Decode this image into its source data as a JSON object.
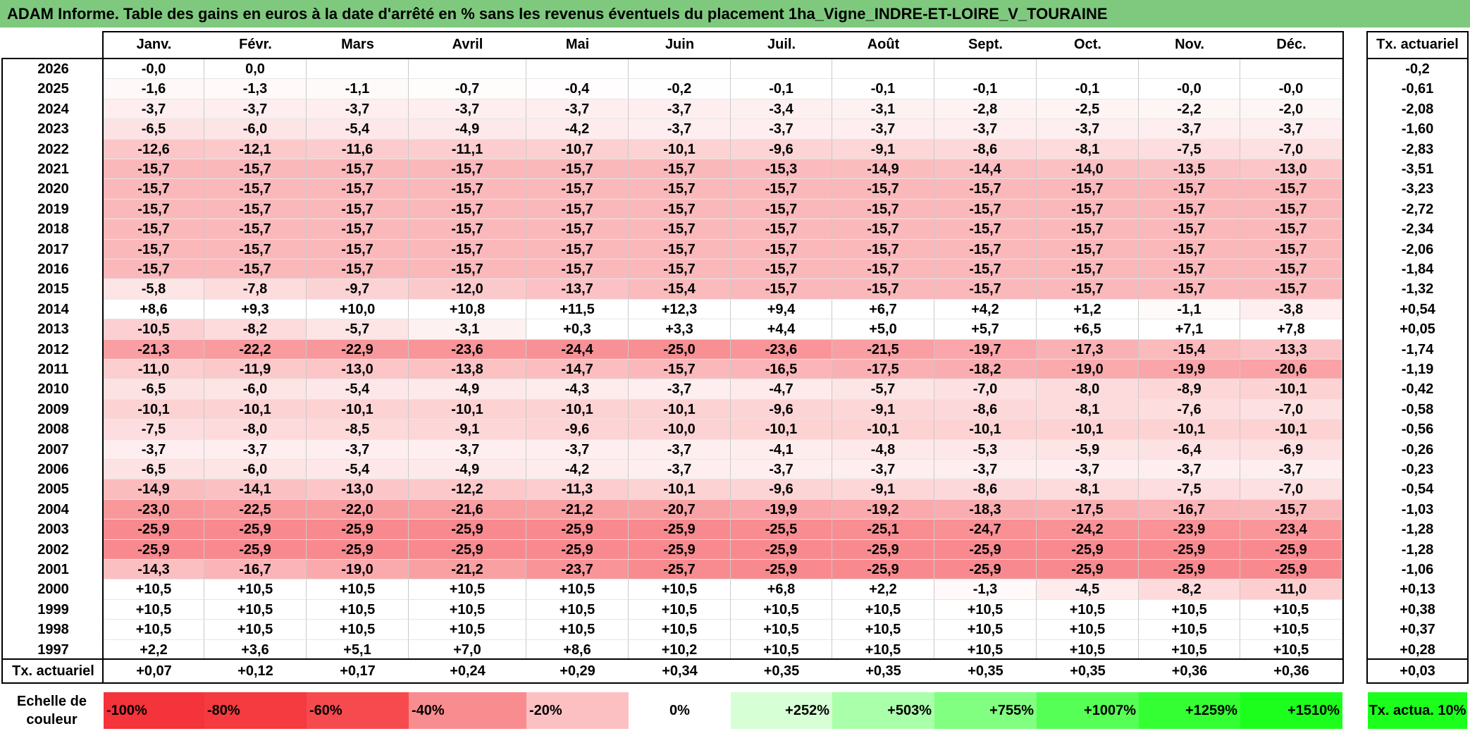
{
  "title": "ADAM Informe. Table des gains en euros à la date d'arrêté en % sans les revenus éventuels du placement 1ha_Vigne_INDRE-ET-LOIRE_V_TOURAINE",
  "chart_data": {
    "type": "table",
    "months": [
      "Janv.",
      "Févr.",
      "Mars",
      "Avril",
      "Mai",
      "Juin",
      "Juil.",
      "Août",
      "Sept.",
      "Oct.",
      "Nov.",
      "Déc."
    ],
    "annual_header": "Tx. actuariel",
    "rows": [
      {
        "year": "2026",
        "values": [
          "-0,0",
          "0,0",
          "",
          "",
          "",
          "",
          "",
          "",
          "",
          "",
          "",
          ""
        ],
        "annual": "-0,2"
      },
      {
        "year": "2025",
        "values": [
          "-1,6",
          "-1,3",
          "-1,1",
          "-0,7",
          "-0,4",
          "-0,2",
          "-0,1",
          "-0,1",
          "-0,1",
          "-0,1",
          "-0,0",
          "-0,0"
        ],
        "annual": "-0,61"
      },
      {
        "year": "2024",
        "values": [
          "-3,7",
          "-3,7",
          "-3,7",
          "-3,7",
          "-3,7",
          "-3,7",
          "-3,4",
          "-3,1",
          "-2,8",
          "-2,5",
          "-2,2",
          "-2,0"
        ],
        "annual": "-2,08"
      },
      {
        "year": "2023",
        "values": [
          "-6,5",
          "-6,0",
          "-5,4",
          "-4,9",
          "-4,2",
          "-3,7",
          "-3,7",
          "-3,7",
          "-3,7",
          "-3,7",
          "-3,7",
          "-3,7"
        ],
        "annual": "-1,60"
      },
      {
        "year": "2022",
        "values": [
          "-12,6",
          "-12,1",
          "-11,6",
          "-11,1",
          "-10,7",
          "-10,1",
          "-9,6",
          "-9,1",
          "-8,6",
          "-8,1",
          "-7,5",
          "-7,0"
        ],
        "annual": "-2,83"
      },
      {
        "year": "2021",
        "values": [
          "-15,7",
          "-15,7",
          "-15,7",
          "-15,7",
          "-15,7",
          "-15,7",
          "-15,3",
          "-14,9",
          "-14,4",
          "-14,0",
          "-13,5",
          "-13,0"
        ],
        "annual": "-3,51"
      },
      {
        "year": "2020",
        "values": [
          "-15,7",
          "-15,7",
          "-15,7",
          "-15,7",
          "-15,7",
          "-15,7",
          "-15,7",
          "-15,7",
          "-15,7",
          "-15,7",
          "-15,7",
          "-15,7"
        ],
        "annual": "-3,23"
      },
      {
        "year": "2019",
        "values": [
          "-15,7",
          "-15,7",
          "-15,7",
          "-15,7",
          "-15,7",
          "-15,7",
          "-15,7",
          "-15,7",
          "-15,7",
          "-15,7",
          "-15,7",
          "-15,7"
        ],
        "annual": "-2,72"
      },
      {
        "year": "2018",
        "values": [
          "-15,7",
          "-15,7",
          "-15,7",
          "-15,7",
          "-15,7",
          "-15,7",
          "-15,7",
          "-15,7",
          "-15,7",
          "-15,7",
          "-15,7",
          "-15,7"
        ],
        "annual": "-2,34"
      },
      {
        "year": "2017",
        "values": [
          "-15,7",
          "-15,7",
          "-15,7",
          "-15,7",
          "-15,7",
          "-15,7",
          "-15,7",
          "-15,7",
          "-15,7",
          "-15,7",
          "-15,7",
          "-15,7"
        ],
        "annual": "-2,06"
      },
      {
        "year": "2016",
        "values": [
          "-15,7",
          "-15,7",
          "-15,7",
          "-15,7",
          "-15,7",
          "-15,7",
          "-15,7",
          "-15,7",
          "-15,7",
          "-15,7",
          "-15,7",
          "-15,7"
        ],
        "annual": "-1,84"
      },
      {
        "year": "2015",
        "values": [
          "-5,8",
          "-7,8",
          "-9,7",
          "-12,0",
          "-13,7",
          "-15,4",
          "-15,7",
          "-15,7",
          "-15,7",
          "-15,7",
          "-15,7",
          "-15,7"
        ],
        "annual": "-1,32"
      },
      {
        "year": "2014",
        "values": [
          "+8,6",
          "+9,3",
          "+10,0",
          "+10,8",
          "+11,5",
          "+12,3",
          "+9,4",
          "+6,7",
          "+4,2",
          "+1,2",
          "-1,1",
          "-3,8"
        ],
        "annual": "+0,54"
      },
      {
        "year": "2013",
        "values": [
          "-10,5",
          "-8,2",
          "-5,7",
          "-3,1",
          "+0,3",
          "+3,3",
          "+4,4",
          "+5,0",
          "+5,7",
          "+6,5",
          "+7,1",
          "+7,8"
        ],
        "annual": "+0,05"
      },
      {
        "year": "2012",
        "values": [
          "-21,3",
          "-22,2",
          "-22,9",
          "-23,6",
          "-24,4",
          "-25,0",
          "-23,6",
          "-21,5",
          "-19,7",
          "-17,3",
          "-15,4",
          "-13,3"
        ],
        "annual": "-1,74"
      },
      {
        "year": "2011",
        "values": [
          "-11,0",
          "-11,9",
          "-13,0",
          "-13,8",
          "-14,7",
          "-15,7",
          "-16,5",
          "-17,5",
          "-18,2",
          "-19,0",
          "-19,9",
          "-20,6"
        ],
        "annual": "-1,19"
      },
      {
        "year": "2010",
        "values": [
          "-6,5",
          "-6,0",
          "-5,4",
          "-4,9",
          "-4,3",
          "-3,7",
          "-4,7",
          "-5,7",
          "-7,0",
          "-8,0",
          "-8,9",
          "-10,1"
        ],
        "annual": "-0,42"
      },
      {
        "year": "2009",
        "values": [
          "-10,1",
          "-10,1",
          "-10,1",
          "-10,1",
          "-10,1",
          "-10,1",
          "-9,6",
          "-9,1",
          "-8,6",
          "-8,1",
          "-7,6",
          "-7,0"
        ],
        "annual": "-0,58"
      },
      {
        "year": "2008",
        "values": [
          "-7,5",
          "-8,0",
          "-8,5",
          "-9,1",
          "-9,6",
          "-10,0",
          "-10,1",
          "-10,1",
          "-10,1",
          "-10,1",
          "-10,1",
          "-10,1"
        ],
        "annual": "-0,56"
      },
      {
        "year": "2007",
        "values": [
          "-3,7",
          "-3,7",
          "-3,7",
          "-3,7",
          "-3,7",
          "-3,7",
          "-4,1",
          "-4,8",
          "-5,3",
          "-5,9",
          "-6,4",
          "-6,9"
        ],
        "annual": "-0,26"
      },
      {
        "year": "2006",
        "values": [
          "-6,5",
          "-6,0",
          "-5,4",
          "-4,9",
          "-4,2",
          "-3,7",
          "-3,7",
          "-3,7",
          "-3,7",
          "-3,7",
          "-3,7",
          "-3,7"
        ],
        "annual": "-0,23"
      },
      {
        "year": "2005",
        "values": [
          "-14,9",
          "-14,1",
          "-13,0",
          "-12,2",
          "-11,3",
          "-10,1",
          "-9,6",
          "-9,1",
          "-8,6",
          "-8,1",
          "-7,5",
          "-7,0"
        ],
        "annual": "-0,54"
      },
      {
        "year": "2004",
        "values": [
          "-23,0",
          "-22,5",
          "-22,0",
          "-21,6",
          "-21,2",
          "-20,7",
          "-19,9",
          "-19,2",
          "-18,3",
          "-17,5",
          "-16,7",
          "-15,7"
        ],
        "annual": "-1,03"
      },
      {
        "year": "2003",
        "values": [
          "-25,9",
          "-25,9",
          "-25,9",
          "-25,9",
          "-25,9",
          "-25,9",
          "-25,5",
          "-25,1",
          "-24,7",
          "-24,2",
          "-23,9",
          "-23,4"
        ],
        "annual": "-1,28"
      },
      {
        "year": "2002",
        "values": [
          "-25,9",
          "-25,9",
          "-25,9",
          "-25,9",
          "-25,9",
          "-25,9",
          "-25,9",
          "-25,9",
          "-25,9",
          "-25,9",
          "-25,9",
          "-25,9"
        ],
        "annual": "-1,28"
      },
      {
        "year": "2001",
        "values": [
          "-14,3",
          "-16,7",
          "-19,0",
          "-21,2",
          "-23,7",
          "-25,7",
          "-25,9",
          "-25,9",
          "-25,9",
          "-25,9",
          "-25,9",
          "-25,9"
        ],
        "annual": "-1,06"
      },
      {
        "year": "2000",
        "values": [
          "+10,5",
          "+10,5",
          "+10,5",
          "+10,5",
          "+10,5",
          "+10,5",
          "+6,8",
          "+2,2",
          "-1,3",
          "-4,5",
          "-8,2",
          "-11,0"
        ],
        "annual": "+0,13"
      },
      {
        "year": "1999",
        "values": [
          "+10,5",
          "+10,5",
          "+10,5",
          "+10,5",
          "+10,5",
          "+10,5",
          "+10,5",
          "+10,5",
          "+10,5",
          "+10,5",
          "+10,5",
          "+10,5"
        ],
        "annual": "+0,38"
      },
      {
        "year": "1998",
        "values": [
          "+10,5",
          "+10,5",
          "+10,5",
          "+10,5",
          "+10,5",
          "+10,5",
          "+10,5",
          "+10,5",
          "+10,5",
          "+10,5",
          "+10,5",
          "+10,5"
        ],
        "annual": "+0,37"
      },
      {
        "year": "1997",
        "values": [
          "+2,2",
          "+3,6",
          "+5,1",
          "+7,0",
          "+8,6",
          "+10,2",
          "+10,5",
          "+10,5",
          "+10,5",
          "+10,5",
          "+10,5",
          "+10,5"
        ],
        "annual": "+0,28"
      }
    ],
    "summary_row": {
      "label": "Tx. actuariel",
      "values": [
        "+0,07",
        "+0,12",
        "+0,17",
        "+0,24",
        "+0,29",
        "+0,34",
        "+0,35",
        "+0,35",
        "+0,35",
        "+0,35",
        "+0,36",
        "+0,36"
      ],
      "annual": "+0,03"
    },
    "color_scale": {
      "label": "Echelle de couleur",
      "items": [
        {
          "text": "-100%",
          "color": "#f4333b"
        },
        {
          "text": "-80%",
          "color": "#f53a40"
        },
        {
          "text": "-60%",
          "color": "#f64a4f"
        },
        {
          "text": "-40%",
          "color": "#f98c8f"
        },
        {
          "text": "-20%",
          "color": "#fcc0c2"
        },
        {
          "text": "0%",
          "color": "#ffffff"
        },
        {
          "text": "+252%",
          "color": "#d6ffd6"
        },
        {
          "text": "+503%",
          "color": "#aaffaa"
        },
        {
          "text": "+755%",
          "color": "#80ff80"
        },
        {
          "text": "+1007%",
          "color": "#55ff55"
        },
        {
          "text": "+1259%",
          "color": "#33ff33"
        },
        {
          "text": "+1510%",
          "color": "#1cff1c"
        }
      ],
      "annual_swatch": {
        "text": "Tx. actua. 10%",
        "color": "#1cff1c"
      }
    },
    "colors": {
      "title_bar": "#7ec97e",
      "negative_max": "#f4333b",
      "positive_max": "#1cff1c"
    }
  }
}
